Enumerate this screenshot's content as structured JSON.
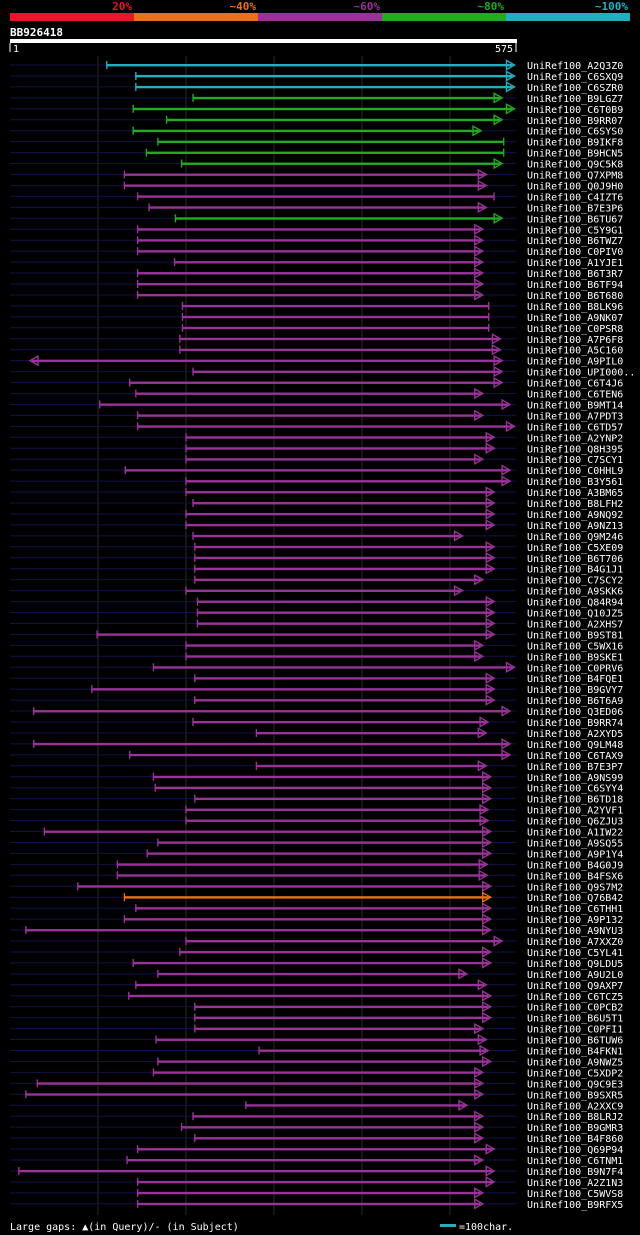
{
  "chart_data": {
    "type": "alignment-overview",
    "title": "BB926418",
    "query_length": 575,
    "axis_start_label": "1",
    "axis_end_label": "575",
    "identity_legend": [
      {
        "label": "20%",
        "color": "#e8162a"
      },
      {
        "label": "~40%",
        "color": "#e8701e"
      },
      {
        "label": "~60%",
        "color": "#993399"
      },
      {
        "label": "~80%",
        "color": "#22aa22"
      },
      {
        "label": "~100%",
        "color": "#22b0c0"
      }
    ],
    "footer_gap_text": "Large gaps: ▲(in Query)/- (in Subject)",
    "footer_scale_text": "=100char.",
    "hits": [
      {
        "name": "UniRef100_A2Q3Z0",
        "start": 110,
        "end": 571,
        "color": "#22b0c0",
        "aL": false,
        "aR": true
      },
      {
        "name": "UniRef100_C6SXQ9",
        "start": 143,
        "end": 571,
        "color": "#22b0c0",
        "aL": false,
        "aR": true
      },
      {
        "name": "UniRef100_C6SZR0",
        "start": 143,
        "end": 571,
        "color": "#22b0c0",
        "aL": false,
        "aR": true
      },
      {
        "name": "UniRef100_B9LGZ7",
        "start": 208,
        "end": 557,
        "color": "#22aa22",
        "aL": false,
        "aR": true
      },
      {
        "name": "UniRef100_C6T0B9",
        "start": 140,
        "end": 571,
        "color": "#22aa22",
        "aL": false,
        "aR": true
      },
      {
        "name": "UniRef100_B9RR07",
        "start": 178,
        "end": 557,
        "color": "#22aa22",
        "aL": false,
        "aR": true
      },
      {
        "name": "UniRef100_C6SYS0",
        "start": 140,
        "end": 533,
        "color": "#22aa22",
        "aL": false,
        "aR": true
      },
      {
        "name": "UniRef100_B9IKF8",
        "start": 168,
        "end": 561,
        "color": "#22aa22",
        "aL": false,
        "aR": false
      },
      {
        "name": "UniRef100_B9HCN5",
        "start": 155,
        "end": 561,
        "color": "#22aa22",
        "aL": false,
        "aR": false
      },
      {
        "name": "UniRef100_Q9C5K8",
        "start": 195,
        "end": 557,
        "color": "#22aa22",
        "aL": false,
        "aR": true
      },
      {
        "name": "UniRef100_Q7XPM8",
        "start": 130,
        "end": 539,
        "color": "#993399",
        "aL": false,
        "aR": true
      },
      {
        "name": "UniRef100_Q0J9H0",
        "start": 130,
        "end": 539,
        "color": "#993399",
        "aL": false,
        "aR": true
      },
      {
        "name": "UniRef100_C4IZT6",
        "start": 145,
        "end": 550,
        "color": "#993399",
        "aL": false,
        "aR": false
      },
      {
        "name": "UniRef100_B7E3P6",
        "start": 158,
        "end": 539,
        "color": "#993399",
        "aL": false,
        "aR": true
      },
      {
        "name": "UniRef100_B6TU67",
        "start": 188,
        "end": 557,
        "color": "#22aa22",
        "aL": false,
        "aR": true
      },
      {
        "name": "UniRef100_C5Y9G1",
        "start": 145,
        "end": 535,
        "color": "#993399",
        "aL": false,
        "aR": true
      },
      {
        "name": "UniRef100_B6TWZ7",
        "start": 145,
        "end": 535,
        "color": "#993399",
        "aL": false,
        "aR": true
      },
      {
        "name": "UniRef100_C0PIV0",
        "start": 145,
        "end": 535,
        "color": "#993399",
        "aL": false,
        "aR": true
      },
      {
        "name": "UniRef100_A1YJE1",
        "start": 187,
        "end": 535,
        "color": "#993399",
        "aL": false,
        "aR": true
      },
      {
        "name": "UniRef100_B6T3R7",
        "start": 145,
        "end": 535,
        "color": "#993399",
        "aL": false,
        "aR": true
      },
      {
        "name": "UniRef100_B6TF94",
        "start": 145,
        "end": 535,
        "color": "#993399",
        "aL": false,
        "aR": true
      },
      {
        "name": "UniRef100_B6T680",
        "start": 145,
        "end": 535,
        "color": "#993399",
        "aL": false,
        "aR": true
      },
      {
        "name": "UniRef100_B8LK96",
        "start": 196,
        "end": 544,
        "color": "#993399",
        "aL": false,
        "aR": false
      },
      {
        "name": "UniRef100_A9NK07",
        "start": 196,
        "end": 544,
        "color": "#993399",
        "aL": false,
        "aR": false
      },
      {
        "name": "UniRef100_C0PSR8",
        "start": 196,
        "end": 544,
        "color": "#993399",
        "aL": false,
        "aR": false
      },
      {
        "name": "UniRef100_A7P6F8",
        "start": 193,
        "end": 555,
        "color": "#993399",
        "aL": false,
        "aR": true
      },
      {
        "name": "UniRef100_A5C160",
        "start": 193,
        "end": 555,
        "color": "#993399",
        "aL": false,
        "aR": true
      },
      {
        "name": "UniRef100_A9PIL0",
        "start": 25,
        "end": 557,
        "color": "#993399",
        "aL": true,
        "aR": true
      },
      {
        "name": "UniRef100_UPI000..",
        "start": 208,
        "end": 557,
        "color": "#993399",
        "aL": false,
        "aR": true
      },
      {
        "name": "UniRef100_C6T4J6",
        "start": 136,
        "end": 557,
        "color": "#993399",
        "aL": false,
        "aR": true
      },
      {
        "name": "UniRef100_C6TEN6",
        "start": 143,
        "end": 535,
        "color": "#993399",
        "aL": false,
        "aR": true
      },
      {
        "name": "UniRef100_B9MT14",
        "start": 102,
        "end": 566,
        "color": "#993399",
        "aL": false,
        "aR": true
      },
      {
        "name": "UniRef100_A7PDT3",
        "start": 145,
        "end": 535,
        "color": "#993399",
        "aL": false,
        "aR": true
      },
      {
        "name": "UniRef100_C6TD57",
        "start": 145,
        "end": 571,
        "color": "#993399",
        "aL": false,
        "aR": true
      },
      {
        "name": "UniRef100_A2YNP2",
        "start": 200,
        "end": 548,
        "color": "#993399",
        "aL": false,
        "aR": true
      },
      {
        "name": "UniRef100_Q8H395",
        "start": 200,
        "end": 548,
        "color": "#993399",
        "aL": false,
        "aR": true
      },
      {
        "name": "UniRef100_C7SCY1",
        "start": 200,
        "end": 535,
        "color": "#993399",
        "aL": false,
        "aR": true
      },
      {
        "name": "UniRef100_C0HHL9",
        "start": 131,
        "end": 566,
        "color": "#993399",
        "aL": false,
        "aR": true
      },
      {
        "name": "UniRef100_B3Y561",
        "start": 200,
        "end": 566,
        "color": "#993399",
        "aL": false,
        "aR": true
      },
      {
        "name": "UniRef100_A3BM65",
        "start": 200,
        "end": 548,
        "color": "#993399",
        "aL": false,
        "aR": true
      },
      {
        "name": "UniRef100_B8LFH2",
        "start": 208,
        "end": 548,
        "color": "#993399",
        "aL": false,
        "aR": true
      },
      {
        "name": "UniRef100_A9NQ92",
        "start": 200,
        "end": 548,
        "color": "#993399",
        "aL": false,
        "aR": true
      },
      {
        "name": "UniRef100_A9NZ13",
        "start": 200,
        "end": 548,
        "color": "#993399",
        "aL": false,
        "aR": true
      },
      {
        "name": "UniRef100_Q9M246",
        "start": 208,
        "end": 512,
        "color": "#993399",
        "aL": false,
        "aR": true
      },
      {
        "name": "UniRef100_C5XE09",
        "start": 210,
        "end": 548,
        "color": "#993399",
        "aL": false,
        "aR": true
      },
      {
        "name": "UniRef100_B6T706",
        "start": 210,
        "end": 548,
        "color": "#993399",
        "aL": false,
        "aR": true
      },
      {
        "name": "UniRef100_B4G1J1",
        "start": 210,
        "end": 548,
        "color": "#993399",
        "aL": false,
        "aR": true
      },
      {
        "name": "UniRef100_C7SCY2",
        "start": 210,
        "end": 535,
        "color": "#993399",
        "aL": false,
        "aR": true
      },
      {
        "name": "UniRef100_A9SKK6",
        "start": 200,
        "end": 512,
        "color": "#993399",
        "aL": false,
        "aR": true
      },
      {
        "name": "UniRef100_Q84R94",
        "start": 213,
        "end": 548,
        "color": "#993399",
        "aL": false,
        "aR": true
      },
      {
        "name": "UniRef100_Q10JZ5",
        "start": 213,
        "end": 548,
        "color": "#993399",
        "aL": false,
        "aR": true
      },
      {
        "name": "UniRef100_A2XHS7",
        "start": 213,
        "end": 548,
        "color": "#993399",
        "aL": false,
        "aR": true
      },
      {
        "name": "UniRef100_B9ST81",
        "start": 99,
        "end": 548,
        "color": "#993399",
        "aL": false,
        "aR": true
      },
      {
        "name": "UniRef100_C5WX16",
        "start": 200,
        "end": 535,
        "color": "#993399",
        "aL": false,
        "aR": true
      },
      {
        "name": "UniRef100_B9SKE1",
        "start": 200,
        "end": 535,
        "color": "#993399",
        "aL": false,
        "aR": true
      },
      {
        "name": "UniRef100_C0PRV6",
        "start": 163,
        "end": 571,
        "color": "#993399",
        "aL": false,
        "aR": true
      },
      {
        "name": "UniRef100_B4FQE1",
        "start": 210,
        "end": 548,
        "color": "#993399",
        "aL": false,
        "aR": true
      },
      {
        "name": "UniRef100_B9GVY7",
        "start": 93,
        "end": 548,
        "color": "#993399",
        "aL": false,
        "aR": true
      },
      {
        "name": "UniRef100_B6T6A9",
        "start": 210,
        "end": 548,
        "color": "#993399",
        "aL": false,
        "aR": true
      },
      {
        "name": "UniRef100_Q3ED06",
        "start": 27,
        "end": 566,
        "color": "#993399",
        "aL": false,
        "aR": true
      },
      {
        "name": "UniRef100_B9RR74",
        "start": 208,
        "end": 541,
        "color": "#993399",
        "aL": false,
        "aR": true
      },
      {
        "name": "UniRef100_A2XYD5",
        "start": 280,
        "end": 539,
        "color": "#993399",
        "aL": false,
        "aR": true
      },
      {
        "name": "UniRef100_Q9LM48",
        "start": 27,
        "end": 566,
        "color": "#993399",
        "aL": false,
        "aR": true
      },
      {
        "name": "UniRef100_C6TAX9",
        "start": 136,
        "end": 566,
        "color": "#993399",
        "aL": false,
        "aR": true
      },
      {
        "name": "UniRef100_B7E3P7",
        "start": 280,
        "end": 539,
        "color": "#993399",
        "aL": false,
        "aR": true
      },
      {
        "name": "UniRef100_A9NS99",
        "start": 163,
        "end": 544,
        "color": "#993399",
        "aL": false,
        "aR": true
      },
      {
        "name": "UniRef100_C6SYY4",
        "start": 165,
        "end": 544,
        "color": "#993399",
        "aL": false,
        "aR": true
      },
      {
        "name": "UniRef100_B6TD18",
        "start": 210,
        "end": 544,
        "color": "#993399",
        "aL": false,
        "aR": true
      },
      {
        "name": "UniRef100_A2YVF1",
        "start": 200,
        "end": 541,
        "color": "#993399",
        "aL": false,
        "aR": true
      },
      {
        "name": "UniRef100_Q6ZJU3",
        "start": 200,
        "end": 541,
        "color": "#993399",
        "aL": false,
        "aR": true
      },
      {
        "name": "UniRef100_A1IW22",
        "start": 39,
        "end": 544,
        "color": "#993399",
        "aL": false,
        "aR": true
      },
      {
        "name": "UniRef100_A9SQ55",
        "start": 168,
        "end": 544,
        "color": "#993399",
        "aL": false,
        "aR": true
      },
      {
        "name": "UniRef100_A9P1Y4",
        "start": 156,
        "end": 544,
        "color": "#993399",
        "aL": false,
        "aR": true
      },
      {
        "name": "UniRef100_B4G0J9",
        "start": 122,
        "end": 540,
        "color": "#993399",
        "aL": false,
        "aR": true
      },
      {
        "name": "UniRef100_B4FSX6",
        "start": 122,
        "end": 540,
        "color": "#993399",
        "aL": false,
        "aR": true
      },
      {
        "name": "UniRef100_Q9S7M2",
        "start": 77,
        "end": 544,
        "color": "#993399",
        "aL": false,
        "aR": true
      },
      {
        "name": "UniRef100_Q76B42",
        "start": 130,
        "end": 544,
        "color": "#e8701e",
        "aL": false,
        "aR": true
      },
      {
        "name": "UniRef100_C6THH1",
        "start": 143,
        "end": 544,
        "color": "#993399",
        "aL": false,
        "aR": true
      },
      {
        "name": "UniRef100_A9P132",
        "start": 130,
        "end": 544,
        "color": "#993399",
        "aL": false,
        "aR": true
      },
      {
        "name": "UniRef100_A9NYU3",
        "start": 18,
        "end": 544,
        "color": "#993399",
        "aL": false,
        "aR": true
      },
      {
        "name": "UniRef100_A7XXZ0",
        "start": 200,
        "end": 557,
        "color": "#993399",
        "aL": false,
        "aR": true
      },
      {
        "name": "UniRef100_C5YL41",
        "start": 193,
        "end": 544,
        "color": "#993399",
        "aL": false,
        "aR": true
      },
      {
        "name": "UniRef100_Q9LDU5",
        "start": 140,
        "end": 544,
        "color": "#993399",
        "aL": false,
        "aR": true
      },
      {
        "name": "UniRef100_A9U2L0",
        "start": 168,
        "end": 517,
        "color": "#993399",
        "aL": false,
        "aR": true
      },
      {
        "name": "UniRef100_Q9AXP7",
        "start": 143,
        "end": 539,
        "color": "#993399",
        "aL": false,
        "aR": true
      },
      {
        "name": "UniRef100_C6TCZ5",
        "start": 135,
        "end": 544,
        "color": "#993399",
        "aL": false,
        "aR": true
      },
      {
        "name": "UniRef100_C0PCB2",
        "start": 210,
        "end": 544,
        "color": "#993399",
        "aL": false,
        "aR": true
      },
      {
        "name": "UniRef100_B6U5T1",
        "start": 210,
        "end": 544,
        "color": "#993399",
        "aL": false,
        "aR": true
      },
      {
        "name": "UniRef100_C0PFI1",
        "start": 210,
        "end": 535,
        "color": "#993399",
        "aL": false,
        "aR": true
      },
      {
        "name": "UniRef100_B6TUW6",
        "start": 166,
        "end": 539,
        "color": "#993399",
        "aL": false,
        "aR": true
      },
      {
        "name": "UniRef100_B4FKN1",
        "start": 283,
        "end": 541,
        "color": "#993399",
        "aL": false,
        "aR": true
      },
      {
        "name": "UniRef100_A9NWZ5",
        "start": 168,
        "end": 544,
        "color": "#993399",
        "aL": false,
        "aR": true
      },
      {
        "name": "UniRef100_C5XDP2",
        "start": 163,
        "end": 535,
        "color": "#993399",
        "aL": false,
        "aR": true
      },
      {
        "name": "UniRef100_Q9C9E3",
        "start": 31,
        "end": 535,
        "color": "#993399",
        "aL": false,
        "aR": true
      },
      {
        "name": "UniRef100_B9SXR5",
        "start": 18,
        "end": 535,
        "color": "#993399",
        "aL": false,
        "aR": true
      },
      {
        "name": "UniRef100_A2XXC9",
        "start": 268,
        "end": 517,
        "color": "#993399",
        "aL": false,
        "aR": true
      },
      {
        "name": "UniRef100_B8LRJ2",
        "start": 208,
        "end": 535,
        "color": "#993399",
        "aL": false,
        "aR": true
      },
      {
        "name": "UniRef100_B9GMR3",
        "start": 195,
        "end": 535,
        "color": "#993399",
        "aL": false,
        "aR": true
      },
      {
        "name": "UniRef100_B4F860",
        "start": 210,
        "end": 535,
        "color": "#993399",
        "aL": false,
        "aR": true
      },
      {
        "name": "UniRef100_Q69P94",
        "start": 145,
        "end": 548,
        "color": "#993399",
        "aL": false,
        "aR": true
      },
      {
        "name": "UniRef100_C6TNM1",
        "start": 133,
        "end": 535,
        "color": "#993399",
        "aL": false,
        "aR": true
      },
      {
        "name": "UniRef100_B9N7F4",
        "start": 10,
        "end": 548,
        "color": "#993399",
        "aL": false,
        "aR": true
      },
      {
        "name": "UniRef100_A2Z1N3",
        "start": 145,
        "end": 548,
        "color": "#993399",
        "aL": false,
        "aR": true
      },
      {
        "name": "UniRef100_C5WVS8",
        "start": 145,
        "end": 535,
        "color": "#993399",
        "aL": false,
        "aR": true
      },
      {
        "name": "UniRef100_B9RFX5",
        "start": 145,
        "end": 535,
        "color": "#993399",
        "aL": false,
        "aR": true
      }
    ]
  }
}
